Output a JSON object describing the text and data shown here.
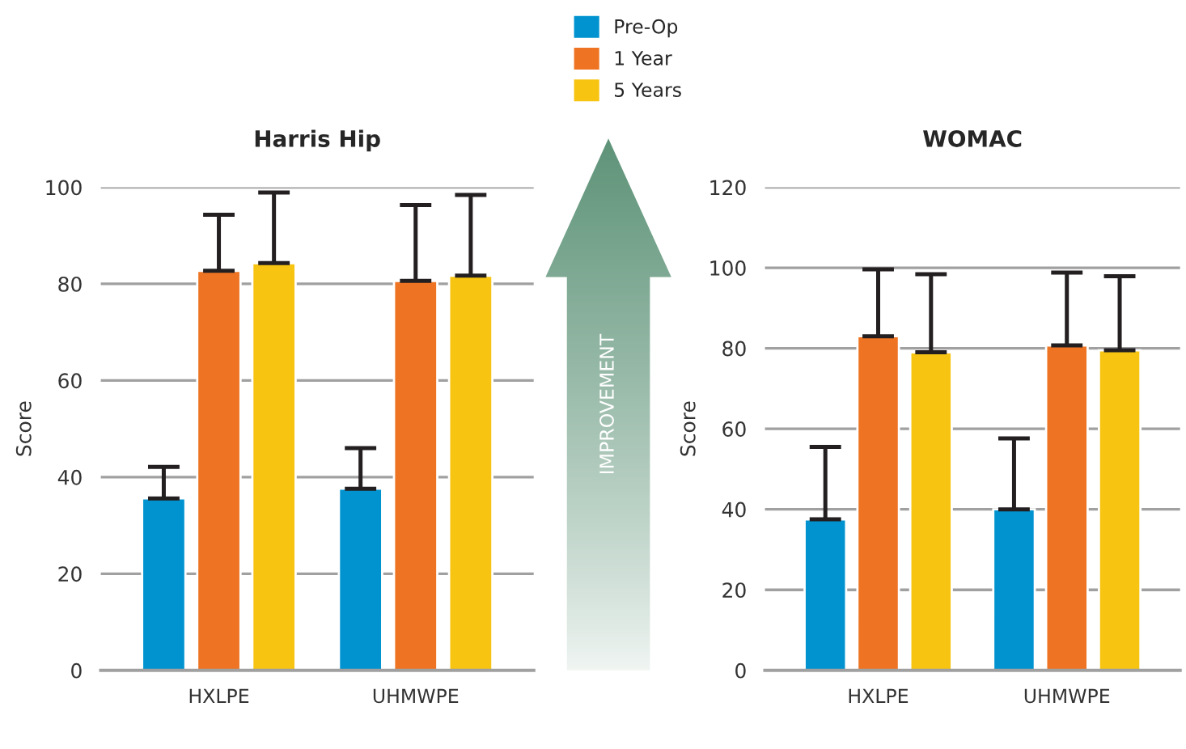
{
  "chart_data": [
    {
      "type": "bar",
      "title": "Harris Hip",
      "ylabel": "Score",
      "categories": [
        "HXLPE",
        "UHMWPE"
      ],
      "ylim": [
        0,
        100
      ],
      "yticks": [
        0,
        20,
        40,
        60,
        80,
        100
      ],
      "grid": "y",
      "legend": "top",
      "annotations": [
        "IMPROVEMENT"
      ],
      "series": [
        {
          "name": "Pre-Op",
          "color": "#0093d0",
          "values": [
            35.6,
            37.6
          ],
          "errors": [
            [
              35.6,
              42.1
            ],
            [
              37.6,
              46
            ]
          ]
        },
        {
          "name": "1 Year",
          "color": "#ee7423",
          "values": [
            82.7,
            80.6
          ],
          "errors": [
            [
              82.7,
              94.3
            ],
            [
              80.6,
              96.3
            ]
          ]
        },
        {
          "name": "5 Years",
          "color": "#f7c412",
          "values": [
            84.3,
            81.7
          ],
          "errors": [
            [
              84.3,
              98.9
            ],
            [
              81.7,
              98.4
            ]
          ]
        }
      ]
    },
    {
      "type": "bar",
      "title": "WOMAC",
      "ylabel": "Score",
      "categories": [
        "HXLPE",
        "UHMWPE"
      ],
      "ylim": [
        0,
        120
      ],
      "yticks": [
        0,
        20,
        40,
        60,
        80,
        100,
        120
      ],
      "grid": "y",
      "series": [
        {
          "color": "#0093d0",
          "values": [
            37.5,
            40
          ],
          "errors": [
            [
              37.5,
              55.5
            ],
            [
              40,
              57.6
            ]
          ]
        },
        {
          "color": "#ee7423",
          "values": [
            83,
            80.7
          ],
          "errors": [
            [
              83,
              99.6
            ],
            [
              80.7,
              98.8
            ]
          ]
        },
        {
          "color": "#f7c412",
          "values": [
            79,
            79.5
          ],
          "errors": [
            [
              79,
              98.4
            ],
            [
              79.5,
              97.9
            ]
          ]
        }
      ]
    }
  ]
}
